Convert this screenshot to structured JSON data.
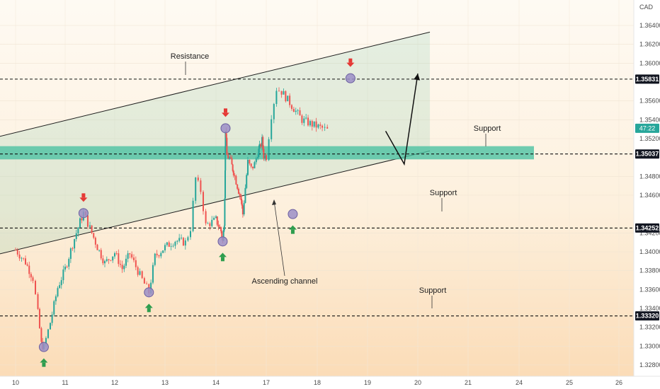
{
  "chart_data": {
    "type": "candlestick",
    "currency": "CAD",
    "x_ticks": [
      "10",
      "11",
      "12",
      "13",
      "14",
      "17",
      "18",
      "19",
      "20",
      "21",
      "24",
      "25",
      "26"
    ],
    "y_ticks": [
      "1.36400",
      "1.36200",
      "1.36000",
      "1.35600",
      "1.35400",
      "1.35200",
      "1.34800",
      "1.34600",
      "1.34200",
      "1.34000",
      "1.33800",
      "1.33600",
      "1.33400",
      "1.33200",
      "1.33000",
      "1.32800"
    ],
    "ylim": [
      1.3268,
      1.3667
    ],
    "levels": [
      {
        "label": "1.35831",
        "price": 1.35831,
        "role": "resistance"
      },
      {
        "label": "1.35037",
        "price": 1.35037,
        "role": "support"
      },
      {
        "label": "1.34252",
        "price": 1.34252,
        "role": "support"
      },
      {
        "label": "1.33320",
        "price": 1.3332,
        "role": "support"
      }
    ],
    "current_price": {
      "label": "47:22",
      "price": 1.3531
    },
    "support_zone": [
      1.3498,
      1.3512
    ],
    "annotations": [
      "Resistance",
      "Support",
      "Support",
      "Support",
      "Ascending channel"
    ],
    "channel": {
      "upper": [
        [
          0.0,
          1.3399
        ],
        [
          20.24,
          1.3633
        ]
      ],
      "lower": [
        [
          0.0,
          1.3276
        ],
        [
          20.24,
          1.3507
        ]
      ]
    },
    "projection": [
      [
        19.36,
        1.3528
      ],
      [
        19.73,
        1.3493
      ],
      [
        20.0,
        1.3589
      ]
    ],
    "marked_swings": [
      {
        "t": 10.57,
        "price": 1.3299,
        "kind": "low"
      },
      {
        "t": 11.37,
        "price": 1.3441,
        "kind": "high"
      },
      {
        "t": 12.68,
        "price": 1.3357,
        "kind": "low"
      },
      {
        "t": 14.4,
        "price": 1.3411,
        "kind": "low"
      },
      {
        "t": 14.57,
        "price": 1.3531,
        "kind": "high"
      },
      {
        "t": 17.52,
        "price": 1.344,
        "kind": "low"
      },
      {
        "t": 18.66,
        "price": 1.3584,
        "kind": "high"
      }
    ],
    "ohlc_path": [
      [
        10.0,
        1.3402
      ],
      [
        10.2,
        1.3389
      ],
      [
        10.35,
        1.3372
      ],
      [
        10.45,
        1.3335
      ],
      [
        10.52,
        1.3302
      ],
      [
        10.57,
        1.3299
      ],
      [
        10.7,
        1.3325
      ],
      [
        10.85,
        1.3362
      ],
      [
        11.0,
        1.3382
      ],
      [
        11.15,
        1.3408
      ],
      [
        11.3,
        1.3432
      ],
      [
        11.37,
        1.3441
      ],
      [
        11.5,
        1.3425
      ],
      [
        11.65,
        1.3405
      ],
      [
        11.8,
        1.3388
      ],
      [
        12.0,
        1.3399
      ],
      [
        12.15,
        1.3382
      ],
      [
        12.3,
        1.3398
      ],
      [
        12.5,
        1.3375
      ],
      [
        12.68,
        1.3357
      ],
      [
        12.8,
        1.3395
      ],
      [
        13.0,
        1.3405
      ],
      [
        13.2,
        1.3412
      ],
      [
        13.4,
        1.341
      ],
      [
        13.5,
        1.3425
      ],
      [
        13.6,
        1.3478
      ],
      [
        13.7,
        1.3465
      ],
      [
        13.8,
        1.3428
      ],
      [
        14.0,
        1.3434
      ],
      [
        14.15,
        1.3428
      ],
      [
        14.3,
        1.3422
      ],
      [
        14.4,
        1.3411
      ],
      [
        14.5,
        1.3432
      ],
      [
        14.55,
        1.349
      ],
      [
        14.57,
        1.3531
      ],
      [
        14.65,
        1.3502
      ],
      [
        14.8,
        1.3499
      ],
      [
        14.95,
        1.3491
      ],
      [
        15.05,
        1.3485
      ],
      [
        15.2,
        1.3475
      ],
      [
        15.35,
        1.3465
      ],
      [
        15.5,
        1.3455
      ],
      [
        15.6,
        1.344
      ],
      [
        15.75,
        1.3468
      ],
      [
        15.9,
        1.3495
      ],
      [
        16.1,
        1.3488
      ],
      [
        16.3,
        1.3493
      ],
      [
        16.5,
        1.3505
      ],
      [
        16.6,
        1.351
      ],
      [
        16.75,
        1.3518
      ],
      [
        16.85,
        1.3502
      ],
      [
        17.0,
        1.3501
      ],
      [
        17.1,
        1.3545
      ],
      [
        17.2,
        1.3573
      ],
      [
        17.3,
        1.357
      ],
      [
        17.5,
        1.3555
      ],
      [
        17.7,
        1.354
      ],
      [
        17.9,
        1.3535
      ],
      [
        18.1,
        1.3531
      ],
      [
        18.2,
        1.3529
      ]
    ]
  }
}
